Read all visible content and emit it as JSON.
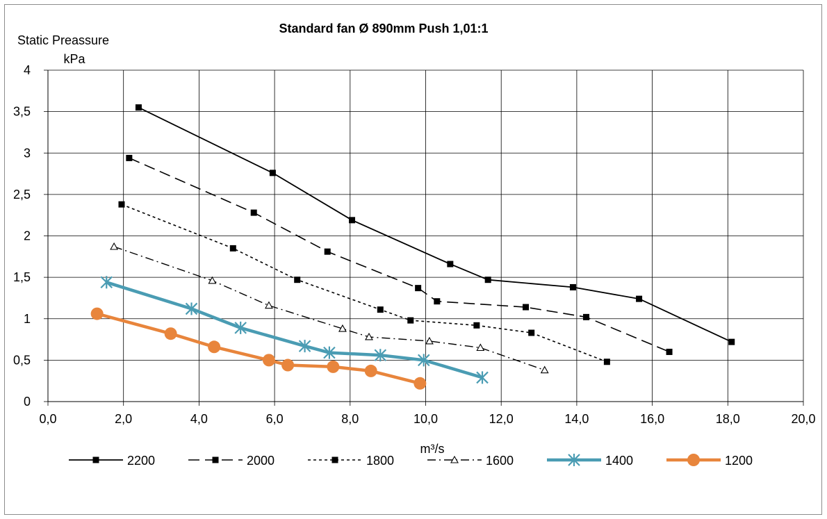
{
  "chart_data": {
    "type": "line",
    "title": "Standard fan Ø 890mm  Push  1,01:1",
    "ylabel_line1": "Static Preassure",
    "ylabel_line2": "kPa",
    "xlabel": "m³/s",
    "xlim": [
      0,
      20
    ],
    "ylim": [
      0,
      4
    ],
    "x_ticks": [
      "0,0",
      "2,0",
      "4,0",
      "6,0",
      "8,0",
      "10,0",
      "12,0",
      "14,0",
      "16,0",
      "18,0",
      "20,0"
    ],
    "y_ticks": [
      "0",
      "0,5",
      "1",
      "1,5",
      "2",
      "2,5",
      "3",
      "3,5",
      "4"
    ],
    "grid": true,
    "legend_position": "bottom",
    "series": [
      {
        "name": "2200",
        "color": "#000000",
        "style": "solid",
        "marker": "square",
        "x": [
          2.4,
          5.95,
          8.05,
          10.65,
          11.65,
          13.9,
          15.65,
          18.1
        ],
        "y": [
          3.55,
          2.76,
          2.19,
          1.66,
          1.47,
          1.38,
          1.24,
          0.72
        ]
      },
      {
        "name": "2000",
        "color": "#000000",
        "style": "longdash",
        "marker": "square",
        "x": [
          2.15,
          5.45,
          7.4,
          9.8,
          10.3,
          12.65,
          14.25,
          16.45
        ],
        "y": [
          2.94,
          2.28,
          1.81,
          1.37,
          1.21,
          1.14,
          1.02,
          0.6
        ]
      },
      {
        "name": "1800",
        "color": "#000000",
        "style": "dotted",
        "marker": "square",
        "x": [
          1.95,
          4.9,
          6.6,
          8.8,
          9.6,
          11.35,
          12.8,
          14.8
        ],
        "y": [
          2.38,
          1.85,
          1.47,
          1.11,
          0.98,
          0.92,
          0.83,
          0.48
        ]
      },
      {
        "name": "1600",
        "color": "#000000",
        "style": "dashdot",
        "marker": "triangle",
        "x": [
          1.75,
          4.35,
          5.85,
          7.8,
          8.5,
          10.1,
          11.45,
          13.15
        ],
        "y": [
          1.87,
          1.46,
          1.16,
          0.88,
          0.78,
          0.73,
          0.65,
          0.38
        ]
      },
      {
        "name": "1400",
        "color": "#4a9cb3",
        "style": "thick",
        "marker": "asterisk",
        "x": [
          1.55,
          3.8,
          5.1,
          6.8,
          7.45,
          8.8,
          9.95,
          11.5
        ],
        "y": [
          1.44,
          1.12,
          0.89,
          0.67,
          0.59,
          0.56,
          0.5,
          0.29
        ]
      },
      {
        "name": "1200",
        "color": "#e8853c",
        "style": "thick",
        "marker": "circle",
        "x": [
          1.3,
          3.25,
          4.4,
          5.85,
          6.35,
          7.55,
          8.55,
          9.85
        ],
        "y": [
          1.06,
          0.82,
          0.66,
          0.5,
          0.44,
          0.42,
          0.37,
          0.22
        ]
      }
    ]
  }
}
